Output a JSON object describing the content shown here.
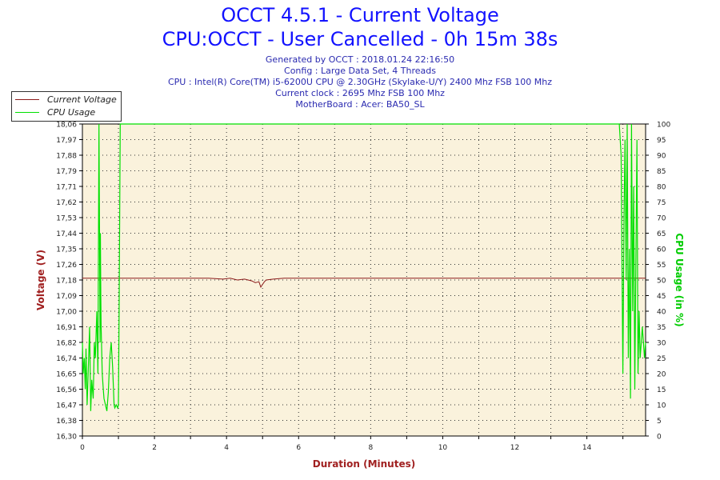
{
  "header": {
    "title": "OCCT 4.5.1 - Current Voltage",
    "subtitle": "CPU:OCCT - User Cancelled - 0h 15m 38s",
    "info": [
      "Generated by OCCT : 2018.01.24 22:16:50",
      "Config : Large Data Set, 4 Threads",
      "CPU : Intel(R) Core(TM) i5-6200U CPU @ 2.30GHz (Skylake-U/Y) 2400 Mhz FSB 100 Mhz",
      "Current clock : 2695 Mhz FSB 100 Mhz",
      "MotherBoard : Acer: BA50_SL"
    ]
  },
  "chart_data": {
    "type": "line",
    "xlabel": "Duration (Minutes)",
    "ylabel": "Voltage (V)",
    "y2label": "CPU Usage (in %)",
    "xlim": [
      0,
      15.63
    ],
    "ylim": [
      16.3,
      18.06
    ],
    "y2lim": [
      0,
      100
    ],
    "x_ticks": [
      0,
      2,
      4,
      6,
      8,
      10,
      12,
      14
    ],
    "y_ticks": [
      "16,30",
      "16,38",
      "16,47",
      "16,56",
      "16,65",
      "16,74",
      "16,82",
      "16,91",
      "17,00",
      "17,09",
      "17,18",
      "17,26",
      "17,35",
      "17,44",
      "17,53",
      "17,62",
      "17,71",
      "17,79",
      "17,88",
      "17,97",
      "18,06"
    ],
    "y2_ticks": [
      0,
      5,
      10,
      15,
      20,
      25,
      30,
      35,
      40,
      45,
      50,
      55,
      60,
      65,
      70,
      75,
      80,
      85,
      90,
      95,
      100
    ],
    "grid": true,
    "legend_position": "top-left",
    "colors": {
      "voltage": "#8b1a1a",
      "cpu": "#00e000",
      "plot_bg": "#faf2dc"
    },
    "series": [
      {
        "name": "Current Voltage",
        "axis": "left",
        "x": [
          0,
          0.5,
          1.0,
          1.5,
          2.0,
          2.5,
          3.0,
          3.5,
          3.9,
          4.1,
          4.3,
          4.5,
          4.7,
          4.8,
          4.9,
          4.95,
          5.0,
          5.05,
          5.1,
          5.3,
          5.6,
          6.0,
          7.0,
          8.0,
          9.0,
          10.0,
          11.0,
          12.0,
          13.0,
          14.0,
          15.0,
          15.63
        ],
        "y": [
          17.19,
          17.19,
          17.19,
          17.19,
          17.19,
          17.19,
          17.19,
          17.19,
          17.185,
          17.19,
          17.18,
          17.185,
          17.175,
          17.165,
          17.17,
          17.14,
          17.155,
          17.17,
          17.18,
          17.185,
          17.19,
          17.19,
          17.19,
          17.19,
          17.19,
          17.19,
          17.19,
          17.19,
          17.19,
          17.19,
          17.19,
          17.19
        ]
      },
      {
        "name": "CPU Usage",
        "axis": "right",
        "x": [
          0,
          0.02,
          0.05,
          0.08,
          0.1,
          0.13,
          0.16,
          0.2,
          0.23,
          0.26,
          0.3,
          0.33,
          0.36,
          0.4,
          0.43,
          0.46,
          0.49,
          0.5,
          0.51,
          0.52,
          0.55,
          0.58,
          0.6,
          0.64,
          0.68,
          0.72,
          0.76,
          0.8,
          0.84,
          0.88,
          0.9,
          0.94,
          0.98,
          1.0,
          1.02,
          1.05,
          1.08,
          4,
          8,
          12,
          14.9,
          14.95,
          15.0,
          15.03,
          15.06,
          15.09,
          15.12,
          15.15,
          15.18,
          15.21,
          15.24,
          15.27,
          15.3,
          15.33,
          15.36,
          15.39,
          15.42,
          15.45,
          15.48,
          15.51,
          15.54,
          15.57,
          15.6,
          15.63
        ],
        "y": [
          30,
          20,
          25,
          15,
          28,
          10,
          20,
          35,
          8,
          18,
          12,
          30,
          25,
          40,
          20,
          100,
          30,
          65,
          45,
          35,
          20,
          15,
          12,
          10,
          8,
          14,
          25,
          30,
          22,
          10,
          9,
          10,
          9,
          10,
          40,
          100,
          100,
          100,
          100,
          100,
          100,
          90,
          20,
          70,
          95,
          50,
          100,
          25,
          60,
          12,
          100,
          40,
          80,
          15,
          55,
          95,
          20,
          40,
          25,
          30,
          35,
          30,
          25,
          30
        ]
      }
    ]
  }
}
